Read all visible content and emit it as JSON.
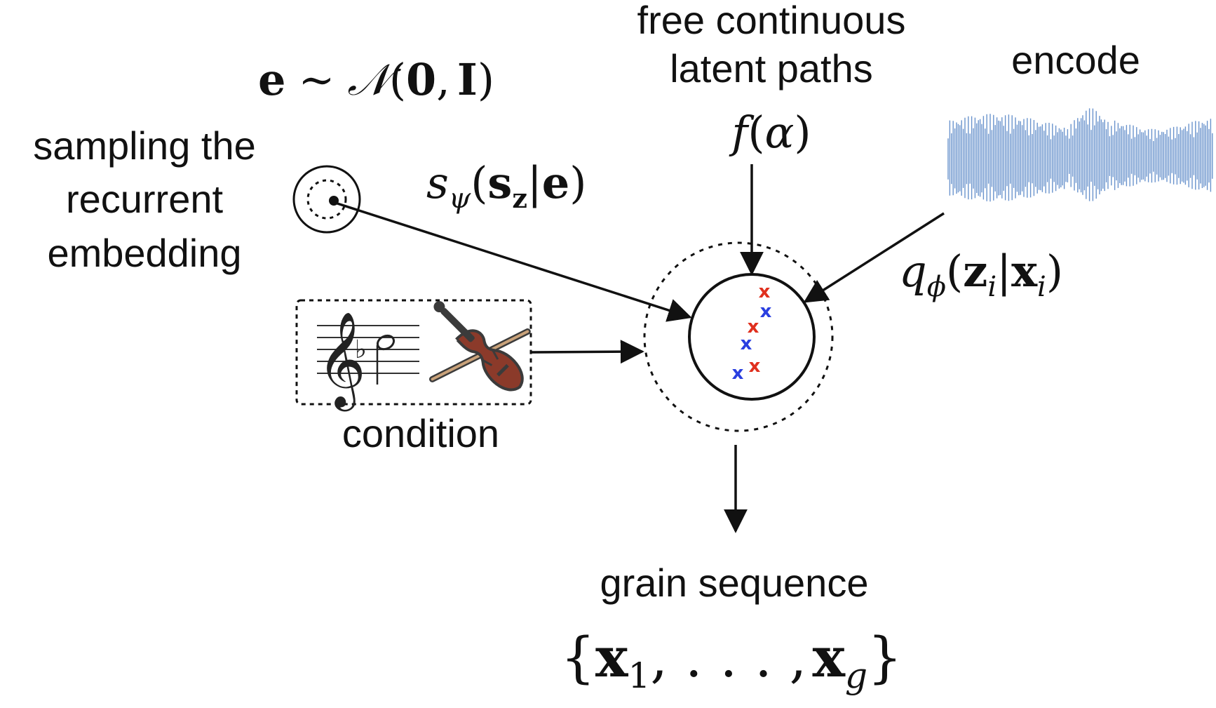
{
  "labels": {
    "free_paths_line1": "free continuous",
    "free_paths_line2": "latent paths",
    "encode": "encode",
    "sampling_line1": "sampling the",
    "sampling_line2": "recurrent",
    "sampling_line3": "embedding",
    "condition": "condition",
    "grain_sequence": "grain sequence"
  },
  "math": {
    "prior": {
      "e": "e",
      "sim": "∼",
      "N": "𝒩",
      "open": "(",
      "zero": "0",
      "comma": ",",
      "I": "I",
      "close": ")"
    },
    "f_alpha": {
      "f": "f",
      "open": "(",
      "alpha": "α",
      "close": ")"
    },
    "s_psi": {
      "s": "s",
      "psi": "ψ",
      "open": "(",
      "s_bold": "s",
      "z_sub": "z",
      "bar": "|",
      "e": "e",
      "close": ")"
    },
    "q_phi": {
      "q": "q",
      "phi": "ϕ",
      "open": "(",
      "z": "z",
      "i1": "i",
      "bar": "|",
      "x": "x",
      "i2": "i",
      "close": ")"
    },
    "set": {
      "open": "{",
      "x1": "x",
      "sub1": "1",
      "mid": ", . . . ,",
      "xg": "x",
      "subg": "g",
      "close": "}"
    }
  },
  "latent_marks": [
    {
      "color": "red",
      "symbol": "x"
    },
    {
      "color": "blue",
      "symbol": "x"
    },
    {
      "color": "red",
      "symbol": "x"
    },
    {
      "color": "blue",
      "symbol": "x"
    },
    {
      "color": "red",
      "symbol": "x"
    },
    {
      "color": "blue",
      "symbol": "x"
    }
  ],
  "colors": {
    "red_mark": "#e0301e",
    "blue_mark": "#2a3fe0",
    "waveform": "#6a93cc",
    "violin_body": "#8b3a2a",
    "violin_dark": "#3b3b3b"
  },
  "icons": [
    "dotted-circle-icon",
    "treble-clef-staff-icon",
    "violin-icon",
    "waveform-icon"
  ]
}
